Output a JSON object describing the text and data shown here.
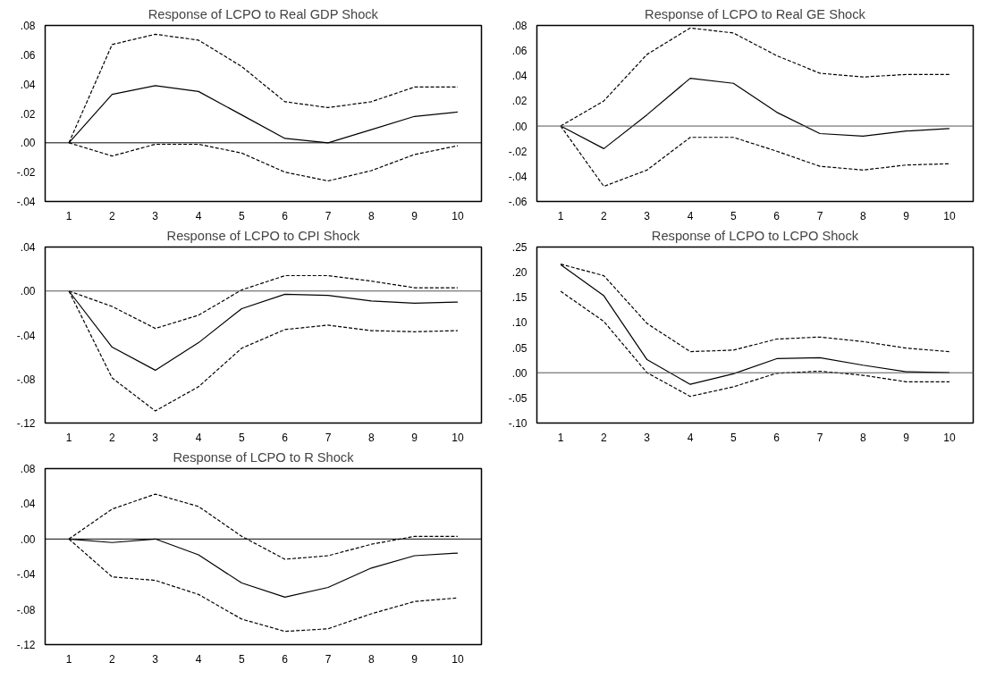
{
  "chart_data": [
    {
      "type": "line",
      "title": "Response of LCPO to Real GDP Shock",
      "categories": [
        "1",
        "2",
        "3",
        "4",
        "5",
        "6",
        "7",
        "8",
        "9",
        "10"
      ],
      "ylim": [
        -0.04,
        0.08
      ],
      "yticks": [
        {
          "value": -0.04,
          "label": "-.04"
        },
        {
          "value": -0.02,
          "label": "-.02"
        },
        {
          "value": 0,
          "label": ".00"
        },
        {
          "value": 0.02,
          "label": ".02"
        },
        {
          "value": 0.04,
          "label": ".04"
        },
        {
          "value": 0.06,
          "label": ".06"
        },
        {
          "value": 0.08,
          "label": ".08"
        }
      ],
      "grid": false,
      "ref_lines": [
        {
          "axis": "y",
          "value": 0,
          "color": "#000000"
        }
      ],
      "series": [
        {
          "color": "#000000",
          "line_style": "solid",
          "values": [
            0,
            0.033,
            0.039,
            0.035,
            0.019,
            0.003,
            0.0,
            0.009,
            0.018,
            0.021
          ]
        },
        {
          "color": "#000000",
          "line_style": "dashed",
          "values": [
            0,
            0.067,
            0.074,
            0.07,
            0.052,
            0.028,
            0.024,
            0.028,
            0.038,
            0.038
          ]
        },
        {
          "color": "#000000",
          "line_style": "dashed",
          "values": [
            0,
            -0.009,
            -0.001,
            -0.001,
            -0.007,
            -0.02,
            -0.026,
            -0.019,
            -0.008,
            -0.002
          ]
        }
      ]
    },
    {
      "type": "line",
      "title": "Response of LCPO to Real GE Shock",
      "categories": [
        "1",
        "2",
        "3",
        "4",
        "5",
        "6",
        "7",
        "8",
        "9",
        "10"
      ],
      "ylim": [
        -0.06,
        0.08
      ],
      "yticks": [
        {
          "value": -0.06,
          "label": "-.06"
        },
        {
          "value": -0.04,
          "label": "-.04"
        },
        {
          "value": -0.02,
          "label": "-.02"
        },
        {
          "value": 0,
          "label": ".00"
        },
        {
          "value": 0.02,
          "label": ".02"
        },
        {
          "value": 0.04,
          "label": ".04"
        },
        {
          "value": 0.06,
          "label": ".06"
        },
        {
          "value": 0.08,
          "label": ".08"
        }
      ],
      "grid": false,
      "ref_lines": [
        {
          "axis": "y",
          "value": 0,
          "color": "#555555"
        }
      ],
      "series": [
        {
          "color": "#000000",
          "line_style": "solid",
          "values": [
            0,
            -0.018,
            0.009,
            0.038,
            0.034,
            0.011,
            -0.006,
            -0.008,
            -0.004,
            -0.002
          ]
        },
        {
          "color": "#000000",
          "line_style": "dashed",
          "values": [
            0,
            0.02,
            0.057,
            0.078,
            0.074,
            0.056,
            0.042,
            0.039,
            0.041,
            0.041
          ]
        },
        {
          "color": "#000000",
          "line_style": "dashed",
          "values": [
            0,
            -0.048,
            -0.035,
            -0.009,
            -0.009,
            -0.02,
            -0.032,
            -0.035,
            -0.031,
            -0.03
          ]
        }
      ]
    },
    {
      "type": "line",
      "title": "Response of LCPO to CPI Shock",
      "categories": [
        "1",
        "2",
        "3",
        "4",
        "5",
        "6",
        "7",
        "8",
        "9",
        "10"
      ],
      "ylim": [
        -0.12,
        0.04
      ],
      "yticks": [
        {
          "value": -0.12,
          "label": "-.12"
        },
        {
          "value": -0.08,
          "label": "-.08"
        },
        {
          "value": -0.04,
          "label": "-.04"
        },
        {
          "value": 0,
          "label": ".00"
        },
        {
          "value": 0.04,
          "label": ".04"
        }
      ],
      "grid": false,
      "ref_lines": [
        {
          "axis": "y",
          "value": 0,
          "color": "#555555"
        }
      ],
      "series": [
        {
          "color": "#000000",
          "line_style": "solid",
          "values": [
            0,
            -0.051,
            -0.072,
            -0.047,
            -0.016,
            -0.003,
            -0.004,
            -0.009,
            -0.011,
            -0.01
          ]
        },
        {
          "color": "#000000",
          "line_style": "dashed",
          "values": [
            0,
            -0.014,
            -0.034,
            -0.022,
            0.001,
            0.014,
            0.014,
            0.009,
            0.003,
            0.003
          ]
        },
        {
          "color": "#000000",
          "line_style": "dashed",
          "values": [
            0,
            -0.079,
            -0.109,
            -0.087,
            -0.052,
            -0.035,
            -0.031,
            -0.036,
            -0.037,
            -0.036
          ]
        }
      ]
    },
    {
      "type": "line",
      "title": "Response of LCPO to LCPO Shock",
      "categories": [
        "1",
        "2",
        "3",
        "4",
        "5",
        "6",
        "7",
        "8",
        "9",
        "10"
      ],
      "ylim": [
        -0.1,
        0.25
      ],
      "yticks": [
        {
          "value": -0.1,
          "label": "-.10"
        },
        {
          "value": -0.05,
          "label": "-.05"
        },
        {
          "value": 0,
          "label": ".00"
        },
        {
          "value": 0.05,
          "label": ".05"
        },
        {
          "value": 0.1,
          "label": ".10"
        },
        {
          "value": 0.15,
          "label": ".15"
        },
        {
          "value": 0.2,
          "label": ".20"
        },
        {
          "value": 0.25,
          "label": ".25"
        }
      ],
      "grid": false,
      "ref_lines": [
        {
          "axis": "y",
          "value": 0,
          "color": "#555555"
        }
      ],
      "series": [
        {
          "color": "#000000",
          "line_style": "solid",
          "values": [
            0.215,
            0.153,
            0.026,
            -0.023,
            -0.002,
            0.028,
            0.03,
            0.015,
            0.002,
            0.0
          ]
        },
        {
          "color": "#000000",
          "line_style": "dashed",
          "values": [
            0.216,
            0.193,
            0.098,
            0.042,
            0.045,
            0.067,
            0.071,
            0.062,
            0.049,
            0.042
          ]
        },
        {
          "color": "#000000",
          "line_style": "dashed",
          "values": [
            0.162,
            0.102,
            0.0,
            -0.047,
            -0.028,
            -0.001,
            0.003,
            -0.005,
            -0.018,
            -0.018
          ]
        }
      ]
    },
    {
      "type": "line",
      "title": "Response of LCPO to R Shock",
      "categories": [
        "1",
        "2",
        "3",
        "4",
        "5",
        "6",
        "7",
        "8",
        "9",
        "10"
      ],
      "ylim": [
        -0.12,
        0.08
      ],
      "yticks": [
        {
          "value": -0.12,
          "label": "-.12"
        },
        {
          "value": -0.08,
          "label": "-.08"
        },
        {
          "value": -0.04,
          "label": "-.04"
        },
        {
          "value": 0,
          "label": ".00"
        },
        {
          "value": 0.04,
          "label": ".04"
        },
        {
          "value": 0.08,
          "label": ".08"
        }
      ],
      "grid": false,
      "ref_lines": [
        {
          "axis": "y",
          "value": 0,
          "color": "#000000"
        }
      ],
      "series": [
        {
          "color": "#000000",
          "line_style": "solid",
          "values": [
            0,
            -0.004,
            0.0,
            -0.018,
            -0.05,
            -0.066,
            -0.055,
            -0.033,
            -0.019,
            -0.016
          ]
        },
        {
          "color": "#000000",
          "line_style": "dashed",
          "values": [
            0,
            0.034,
            0.051,
            0.037,
            0.003,
            -0.023,
            -0.019,
            -0.006,
            0.003,
            0.003
          ]
        },
        {
          "color": "#000000",
          "line_style": "dashed",
          "values": [
            0,
            -0.043,
            -0.047,
            -0.063,
            -0.091,
            -0.105,
            -0.102,
            -0.085,
            -0.071,
            -0.067
          ]
        }
      ]
    }
  ]
}
